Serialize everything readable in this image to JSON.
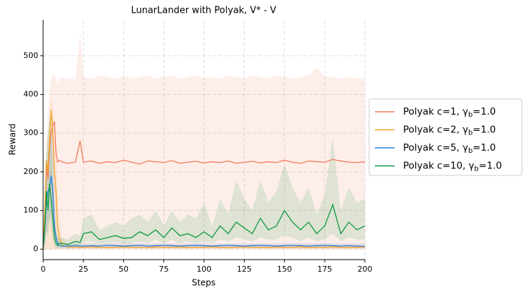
{
  "chart_data": {
    "type": "line",
    "title": "LunarLander with Polyak, V* - V",
    "x_label": "Steps",
    "y_label": "Reward",
    "xlim": [
      0,
      200
    ],
    "ylim": [
      -27,
      593
    ],
    "xticks": [
      0,
      25,
      50,
      75,
      100,
      125,
      150,
      175,
      200
    ],
    "yticks": [
      0,
      100,
      200,
      300,
      400,
      500
    ],
    "grid": true,
    "legend": "outside right",
    "x": [
      0,
      1,
      2,
      3,
      4,
      5,
      6,
      7,
      8,
      9,
      10,
      12,
      15,
      20,
      23,
      25,
      30,
      35,
      40,
      45,
      50,
      55,
      60,
      65,
      70,
      75,
      80,
      85,
      90,
      95,
      100,
      105,
      110,
      115,
      120,
      125,
      130,
      135,
      140,
      145,
      150,
      155,
      160,
      165,
      170,
      175,
      180,
      185,
      190,
      195,
      200
    ],
    "series": [
      {
        "name": "Polyak c=1, γb=1.0",
        "color": "#f47a5e",
        "values": [
          0,
          50,
          220,
          180,
          260,
          300,
          320,
          330,
          250,
          225,
          230,
          225,
          222,
          225,
          280,
          225,
          228,
          222,
          226,
          224,
          230,
          225,
          220,
          228,
          226,
          224,
          229,
          222,
          225,
          227,
          223,
          226,
          224,
          228,
          222,
          225,
          227,
          223,
          226,
          224,
          230,
          225,
          222,
          228,
          226,
          225,
          232,
          228,
          225,
          224,
          226
        ],
        "upper": [
          0,
          100,
          250,
          350,
          420,
          440,
          450,
          450,
          440,
          430,
          440,
          445,
          440,
          440,
          560,
          445,
          440,
          450,
          445,
          440,
          448,
          442,
          445,
          450,
          440,
          445,
          448,
          440,
          445,
          450,
          442,
          445,
          440,
          448,
          445,
          440,
          450,
          445,
          442,
          448,
          445,
          440,
          445,
          450,
          470,
          448,
          445,
          440,
          445,
          442,
          440
        ],
        "lower": [
          0,
          0,
          0,
          0,
          0,
          0,
          0,
          0,
          0,
          0,
          0,
          0,
          0,
          0,
          0,
          0,
          0,
          0,
          0,
          0,
          0,
          0,
          0,
          0,
          0,
          0,
          0,
          0,
          0,
          0,
          0,
          0,
          0,
          0,
          0,
          0,
          0,
          0,
          0,
          0,
          0,
          0,
          0,
          0,
          0,
          0,
          0,
          0,
          0,
          0,
          0
        ]
      },
      {
        "name": "Polyak c=2, γb=1.0",
        "color": "#f0a22e",
        "values": [
          0,
          100,
          230,
          200,
          280,
          360,
          300,
          200,
          150,
          60,
          30,
          10,
          6,
          5,
          5,
          5,
          6,
          5,
          4,
          5,
          6,
          5,
          5,
          4,
          6,
          5,
          5,
          6,
          4,
          5,
          5,
          6,
          5,
          4,
          5,
          6,
          5,
          5,
          4,
          6,
          5,
          5,
          6,
          4,
          5,
          5,
          6,
          5,
          4,
          5,
          5
        ],
        "upper": [
          0,
          150,
          280,
          300,
          350,
          400,
          370,
          330,
          280,
          150,
          80,
          30,
          15,
          12,
          12,
          12,
          12,
          12,
          12,
          12,
          12,
          12,
          12,
          12,
          12,
          12,
          12,
          12,
          12,
          12,
          12,
          12,
          12,
          12,
          12,
          12,
          12,
          12,
          12,
          12,
          12,
          12,
          12,
          12,
          12,
          12,
          12,
          12,
          12,
          12,
          12
        ],
        "lower": [
          0,
          0,
          0,
          0,
          0,
          0,
          0,
          0,
          0,
          0,
          0,
          0,
          0,
          0,
          0,
          0,
          0,
          0,
          0,
          0,
          0,
          0,
          0,
          0,
          0,
          0,
          0,
          0,
          0,
          0,
          0,
          0,
          0,
          0,
          0,
          0,
          0,
          0,
          0,
          0,
          0,
          0,
          0,
          0,
          0,
          0,
          0,
          0,
          0,
          0,
          0
        ]
      },
      {
        "name": "Polyak c=5, γb=1.0",
        "color": "#2a7de1",
        "values": [
          10,
          50,
          120,
          150,
          160,
          190,
          150,
          60,
          30,
          15,
          10,
          8,
          8,
          9,
          8,
          8,
          9,
          8,
          10,
          9,
          8,
          9,
          10,
          8,
          9,
          10,
          9,
          8,
          9,
          10,
          9,
          8,
          9,
          10,
          9,
          8,
          9,
          10,
          9,
          8,
          9,
          10,
          9,
          8,
          9,
          10,
          9,
          8,
          9,
          8,
          7
        ],
        "upper": [
          20,
          100,
          200,
          250,
          300,
          330,
          280,
          150,
          60,
          30,
          20,
          15,
          15,
          15,
          15,
          15,
          15,
          15,
          15,
          15,
          15,
          15,
          15,
          15,
          15,
          15,
          15,
          15,
          15,
          15,
          15,
          15,
          15,
          15,
          15,
          15,
          15,
          15,
          15,
          15,
          15,
          15,
          15,
          15,
          15,
          15,
          15,
          15,
          15,
          15,
          15
        ],
        "lower": [
          0,
          10,
          40,
          60,
          80,
          100,
          60,
          20,
          5,
          3,
          2,
          2,
          2,
          2,
          2,
          3,
          3,
          3,
          3,
          3,
          3,
          3,
          3,
          3,
          3,
          3,
          3,
          3,
          3,
          3,
          3,
          3,
          3,
          3,
          3,
          3,
          3,
          3,
          3,
          3,
          3,
          3,
          3,
          3,
          3,
          3,
          3,
          3,
          3,
          3,
          3
        ]
      },
      {
        "name": "Polyak c=10, γb=1.0",
        "color": "#0b9a40",
        "values": [
          0,
          50,
          150,
          100,
          170,
          130,
          80,
          30,
          15,
          10,
          15,
          15,
          12,
          20,
          18,
          40,
          45,
          25,
          30,
          35,
          28,
          30,
          45,
          35,
          50,
          30,
          55,
          35,
          40,
          30,
          45,
          30,
          60,
          40,
          70,
          55,
          40,
          80,
          50,
          60,
          100,
          70,
          50,
          70,
          40,
          60,
          115,
          40,
          70,
          50,
          60
        ],
        "upper": [
          0,
          100,
          250,
          300,
          350,
          280,
          200,
          80,
          40,
          30,
          30,
          30,
          25,
          40,
          35,
          80,
          90,
          50,
          60,
          70,
          60,
          80,
          90,
          70,
          100,
          60,
          100,
          70,
          90,
          80,
          120,
          60,
          130,
          90,
          180,
          130,
          100,
          180,
          120,
          150,
          220,
          160,
          120,
          160,
          90,
          140,
          290,
          100,
          160,
          120,
          130
        ],
        "lower": [
          0,
          10,
          50,
          30,
          80,
          50,
          20,
          5,
          5,
          3,
          5,
          5,
          5,
          10,
          8,
          20,
          20,
          15,
          15,
          18,
          15,
          15,
          20,
          15,
          25,
          15,
          25,
          15,
          20,
          15,
          20,
          15,
          25,
          20,
          30,
          25,
          20,
          30,
          25,
          25,
          35,
          30,
          20,
          30,
          20,
          25,
          40,
          20,
          30,
          25,
          25
        ]
      }
    ]
  }
}
